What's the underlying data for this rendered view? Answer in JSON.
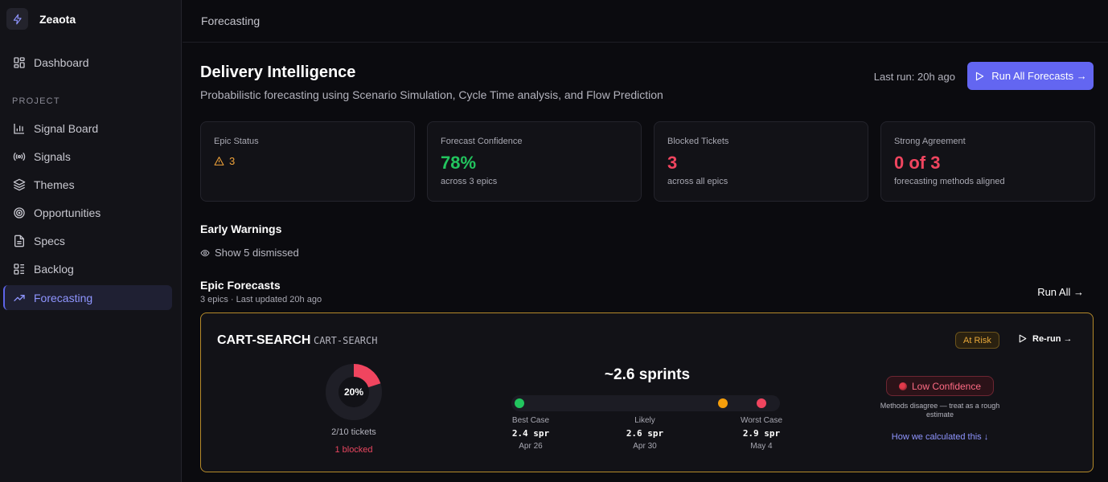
{
  "app": {
    "name": "Zeaota"
  },
  "sidebar": {
    "top_item": {
      "label": "Dashboard",
      "icon": "dashboard-icon"
    },
    "section_label": "PROJECT",
    "items": [
      {
        "label": "Signal Board",
        "icon": "bar-chart-icon"
      },
      {
        "label": "Signals",
        "icon": "broadcast-icon"
      },
      {
        "label": "Themes",
        "icon": "layers-icon"
      },
      {
        "label": "Opportunities",
        "icon": "target-icon"
      },
      {
        "label": "Specs",
        "icon": "document-icon"
      },
      {
        "label": "Backlog",
        "icon": "kanban-icon"
      },
      {
        "label": "Forecasting",
        "icon": "trending-up-icon",
        "active": true
      }
    ]
  },
  "header": {
    "title": "Forecasting"
  },
  "page": {
    "title": "Delivery Intelligence",
    "subtitle": "Probabilistic forecasting using Scenario Simulation, Cycle Time analysis, and Flow Prediction",
    "last_run": "Last run: 20h ago",
    "run_all_button": "Run All Forecasts →"
  },
  "stats": {
    "epic_status": {
      "label": "Epic Status",
      "value": "3"
    },
    "forecast_confidence": {
      "label": "Forecast Confidence",
      "value": "78%",
      "sub": "across 3 epics"
    },
    "blocked_tickets": {
      "label": "Blocked Tickets",
      "value": "3",
      "sub": "across all epics"
    },
    "strong_agreement": {
      "label": "Strong Agreement",
      "value": "0 of 3",
      "sub": "forecasting methods aligned"
    }
  },
  "early_warnings": {
    "title": "Early Warnings",
    "show_dismissed": "Show 5 dismissed"
  },
  "epic_forecasts": {
    "title": "Epic Forecasts",
    "meta": "3 epics · Last updated 20h ago",
    "run_all": "Run All →"
  },
  "epic": {
    "name": "CART-SEARCH",
    "key": "CART-SEARCH",
    "badge": "At Risk",
    "rerun": "Re-run →",
    "progress_fraction": 0.2,
    "progress_label": "20%",
    "tickets": "2/10 tickets",
    "blocked": "1 blocked",
    "sprints": "~2.6 sprints",
    "scenarios": [
      {
        "name": "Best Case",
        "value": "2.4 spr",
        "date": "Apr 26"
      },
      {
        "name": "Likely",
        "value": "2.6 spr",
        "date": "Apr 30"
      },
      {
        "name": "Worst Case",
        "value": "2.9 spr",
        "date": "May 4"
      }
    ],
    "confidence": {
      "label": "Low Confidence",
      "note": "Methods disagree — treat as a rough estimate",
      "link": "How we calculated this ↓"
    }
  },
  "colors": {
    "accent": "#6366f1",
    "success": "#22c55e",
    "danger": "#f0455f",
    "warning": "#f0a33a",
    "risk_border": "#b58a2a"
  }
}
